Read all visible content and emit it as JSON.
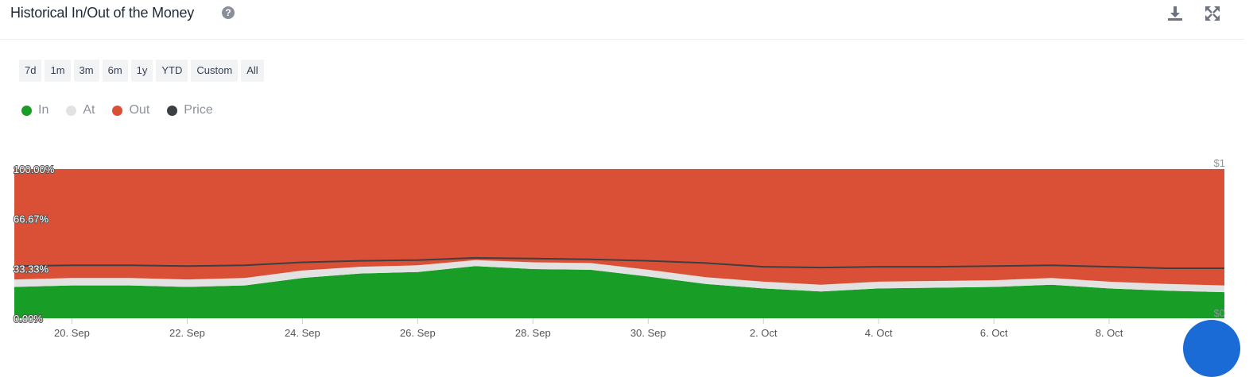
{
  "header": {
    "title": "Historical In/Out of the Money",
    "help_glyph": "?",
    "icons": [
      "help-icon",
      "download-icon",
      "expand-icon"
    ]
  },
  "ranges": [
    "7d",
    "1m",
    "3m",
    "6m",
    "1y",
    "YTD",
    "Custom",
    "All"
  ],
  "legend": [
    {
      "label": "In",
      "color": "#189d26"
    },
    {
      "label": "At",
      "color": "#e2e2e2"
    },
    {
      "label": "Out",
      "color": "#d95036"
    },
    {
      "label": "Price",
      "color": "#3c3f44"
    }
  ],
  "chart_data": {
    "type": "area",
    "x": [
      "19 Sep",
      "20 Sep",
      "21 Sep",
      "22 Sep",
      "23 Sep",
      "24 Sep",
      "25 Sep",
      "26 Sep",
      "27 Sep",
      "28 Sep",
      "29 Sep",
      "30 Sep",
      "1 Oct",
      "2 Oct",
      "3 Oct",
      "4 Oct",
      "5 Oct",
      "6 Oct",
      "7 Oct",
      "8 Oct",
      "9 Oct",
      "10 Oct"
    ],
    "x_ticks": [
      "20. Sep",
      "22. Sep",
      "24. Sep",
      "26. Sep",
      "28. Sep",
      "30. Sep",
      "2. Oct",
      "4. Oct",
      "6. Oct",
      "8. Oct"
    ],
    "y_ticks": [
      "0.00%",
      "33.33%",
      "66.67%",
      "100.00%"
    ],
    "y2_ticks": [
      "$0",
      "$1"
    ],
    "ylim": [
      0,
      100
    ],
    "y2lim": [
      0,
      1
    ],
    "series": [
      {
        "name": "In",
        "color": "#189d26",
        "values": [
          21,
          22,
          22,
          21,
          22,
          27,
          30,
          31,
          35,
          33,
          32.5,
          28,
          23,
          20,
          18,
          20,
          20.5,
          21,
          22.5,
          20,
          18.5,
          17.5
        ]
      },
      {
        "name": "At",
        "color": "#e2e2e2",
        "values": [
          5,
          5,
          5,
          5,
          5,
          5,
          4.5,
          4.5,
          4,
          4.5,
          4.5,
          4.5,
          4.5,
          4.5,
          4.5,
          4.5,
          4.5,
          4.5,
          4.5,
          4.5,
          4.5,
          4.5
        ]
      },
      {
        "name": "Out",
        "color": "#d95036",
        "values": [
          74,
          73,
          73,
          74,
          73,
          68,
          65.5,
          64.5,
          61,
          62.5,
          63,
          67.5,
          72.5,
          75.5,
          77.5,
          75.5,
          75,
          74.5,
          73,
          75.5,
          77,
          78
        ]
      },
      {
        "name": "Price",
        "color": "#3c3f44",
        "axis": "right",
        "values": [
          0.35,
          0.355,
          0.355,
          0.35,
          0.355,
          0.375,
          0.385,
          0.39,
          0.405,
          0.4,
          0.395,
          0.385,
          0.37,
          0.345,
          0.34,
          0.345,
          0.345,
          0.35,
          0.355,
          0.345,
          0.335,
          0.335
        ]
      }
    ]
  }
}
